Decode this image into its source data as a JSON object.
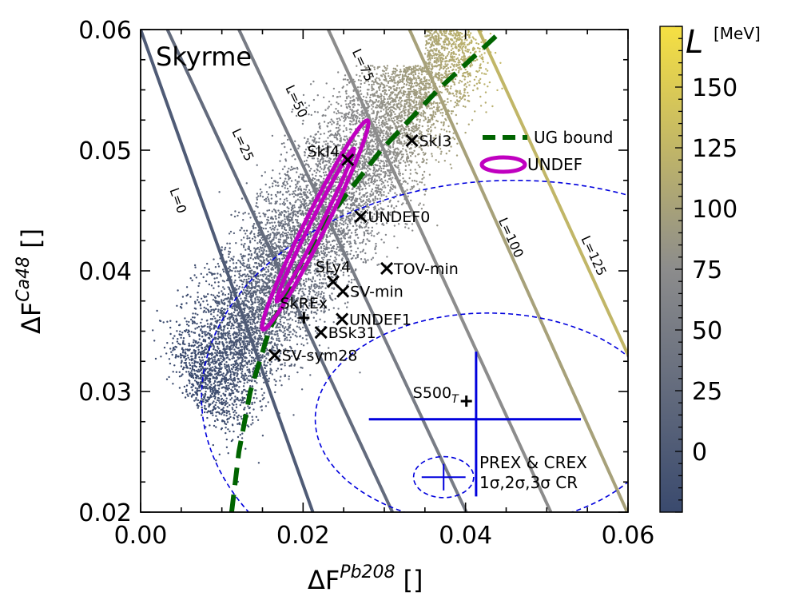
{
  "chart_data": {
    "type": "scatter",
    "panel_label": "Skyrme",
    "xlabel_main": "ΔF",
    "xlabel_sup": "Pb208",
    "xlabel_unit": "[]",
    "ylabel_main": "ΔF",
    "ylabel_sup": "Ca48",
    "ylabel_unit": "[]",
    "xlim": [
      0.0,
      0.06
    ],
    "ylim": [
      0.02,
      0.06
    ],
    "x_ticks": [
      "0.00",
      "0.02",
      "0.04",
      "0.06"
    ],
    "y_ticks": [
      "0.02",
      "0.03",
      "0.04",
      "0.05",
      "0.06"
    ],
    "colorbar": {
      "label": "L",
      "unit": "[MeV]",
      "range": [
        -25,
        175
      ],
      "ticks": [
        "0",
        "25",
        "50",
        "75",
        "100",
        "125",
        "150"
      ],
      "color_low": "#3a4a6e",
      "color_mid": "#8c8c8c",
      "color_high": "#f6e042"
    },
    "iso_L_lines": [
      {
        "label": "L=0",
        "L": 0,
        "x_at_top": 0.0,
        "x_at_bottom": 0.0212,
        "label_x": 0.0041,
        "label_y": 0.0457
      },
      {
        "label": "L=25",
        "L": 25,
        "x_at_top": 0.0033,
        "x_at_bottom": 0.031,
        "label_x": 0.0121,
        "label_y": 0.0503
      },
      {
        "label": "L=50",
        "L": 50,
        "x_at_top": 0.0121,
        "x_at_bottom": 0.0401,
        "label_x": 0.0187,
        "label_y": 0.0539
      },
      {
        "label": "L=75",
        "L": 75,
        "x_at_top": 0.0231,
        "x_at_bottom": 0.0505,
        "label_x": 0.0269,
        "label_y": 0.0569
      },
      {
        "label": "L=100",
        "L": 100,
        "x_at_top": 0.0331,
        "x_at_bottom": 0.0599,
        "label_x": 0.0451,
        "label_y": 0.0426
      },
      {
        "label": "L=125",
        "L": 125,
        "x_at_top": 0.0416,
        "x_at_bottom": 0.0689,
        "label_x": 0.0553,
        "label_y": 0.0411
      }
    ],
    "ug_bound": {
      "label": "UG bound",
      "color": "#006400",
      "points": [
        [
          0.0112,
          0.02
        ],
        [
          0.0121,
          0.025
        ],
        [
          0.0135,
          0.03
        ],
        [
          0.0158,
          0.035
        ],
        [
          0.0192,
          0.04
        ],
        [
          0.0238,
          0.045
        ],
        [
          0.0296,
          0.05
        ],
        [
          0.0366,
          0.055
        ],
        [
          0.0443,
          0.0598
        ]
      ]
    },
    "undef_ellipses": {
      "label": "UNDEF",
      "color": "#c000c0",
      "center": [
        0.0215,
        0.0438
      ],
      "outer_half_major": 0.0108,
      "outer_half_minor": 0.00115,
      "inner_half_major": 0.0079,
      "inner_half_minor": 0.00055,
      "angle_deg": 57
    },
    "models": [
      {
        "name": "SkI3",
        "x": 0.0334,
        "y": 0.0508,
        "marker": "x"
      },
      {
        "name": "SkI4",
        "x": 0.0255,
        "y": 0.0492,
        "marker": "x",
        "label_side": "left"
      },
      {
        "name": "UNDEF0",
        "x": 0.0271,
        "y": 0.0445,
        "marker": "x"
      },
      {
        "name": "TOV-min",
        "x": 0.0303,
        "y": 0.0402,
        "marker": "x"
      },
      {
        "name": "SLy4",
        "x": 0.0237,
        "y": 0.0391,
        "marker": "x",
        "label_side": "above"
      },
      {
        "name": "SV-min",
        "x": 0.0249,
        "y": 0.0383,
        "marker": "x"
      },
      {
        "name": "SkREx",
        "x": 0.0201,
        "y": 0.0361,
        "marker": "+",
        "label_side": "above"
      },
      {
        "name": "UNDEF1",
        "x": 0.0248,
        "y": 0.036,
        "marker": "x"
      },
      {
        "name": "BSk31",
        "x": 0.0222,
        "y": 0.0349,
        "marker": "x"
      },
      {
        "name": "SV-sym28",
        "x": 0.0165,
        "y": 0.033,
        "marker": "x"
      },
      {
        "name": "S500",
        "name_sub": "T",
        "x": 0.0401,
        "y": 0.0292,
        "marker": "+",
        "label_side": "left"
      }
    ],
    "prex_crex": {
      "label_line1": "PREX & CREX",
      "label_line2": "1σ,2σ,3σ CR",
      "color": "#0000dd",
      "big_cross": {
        "x": 0.0413,
        "y": 0.0277,
        "xerr_low": 0.0132,
        "xerr_high": 0.0129,
        "yerr_low": 0.0064,
        "yerr_high": 0.0056
      },
      "small_cross": {
        "x": 0.0373,
        "y": 0.0229,
        "xerr": 0.0027,
        "yerr": 0.0011
      },
      "confidence_ellipses": [
        {
          "cx": 0.0373,
          "cy": 0.0229,
          "rx": 0.0037,
          "ry": 0.0017,
          "label": "1σ"
        },
        {
          "cx": 0.0428,
          "cy": 0.0277,
          "rx": 0.0213,
          "ry": 0.0088,
          "label": "2σ"
        },
        {
          "cx": 0.046,
          "cy": 0.0295,
          "rx": 0.0385,
          "ry": 0.018,
          "label": "3σ"
        }
      ]
    },
    "scatter_cloud": {
      "description_count": 9000,
      "note": "sampled Skyrme parameter sets, coloured by L"
    },
    "legend": [
      "UG bound",
      "UNDEF"
    ]
  }
}
